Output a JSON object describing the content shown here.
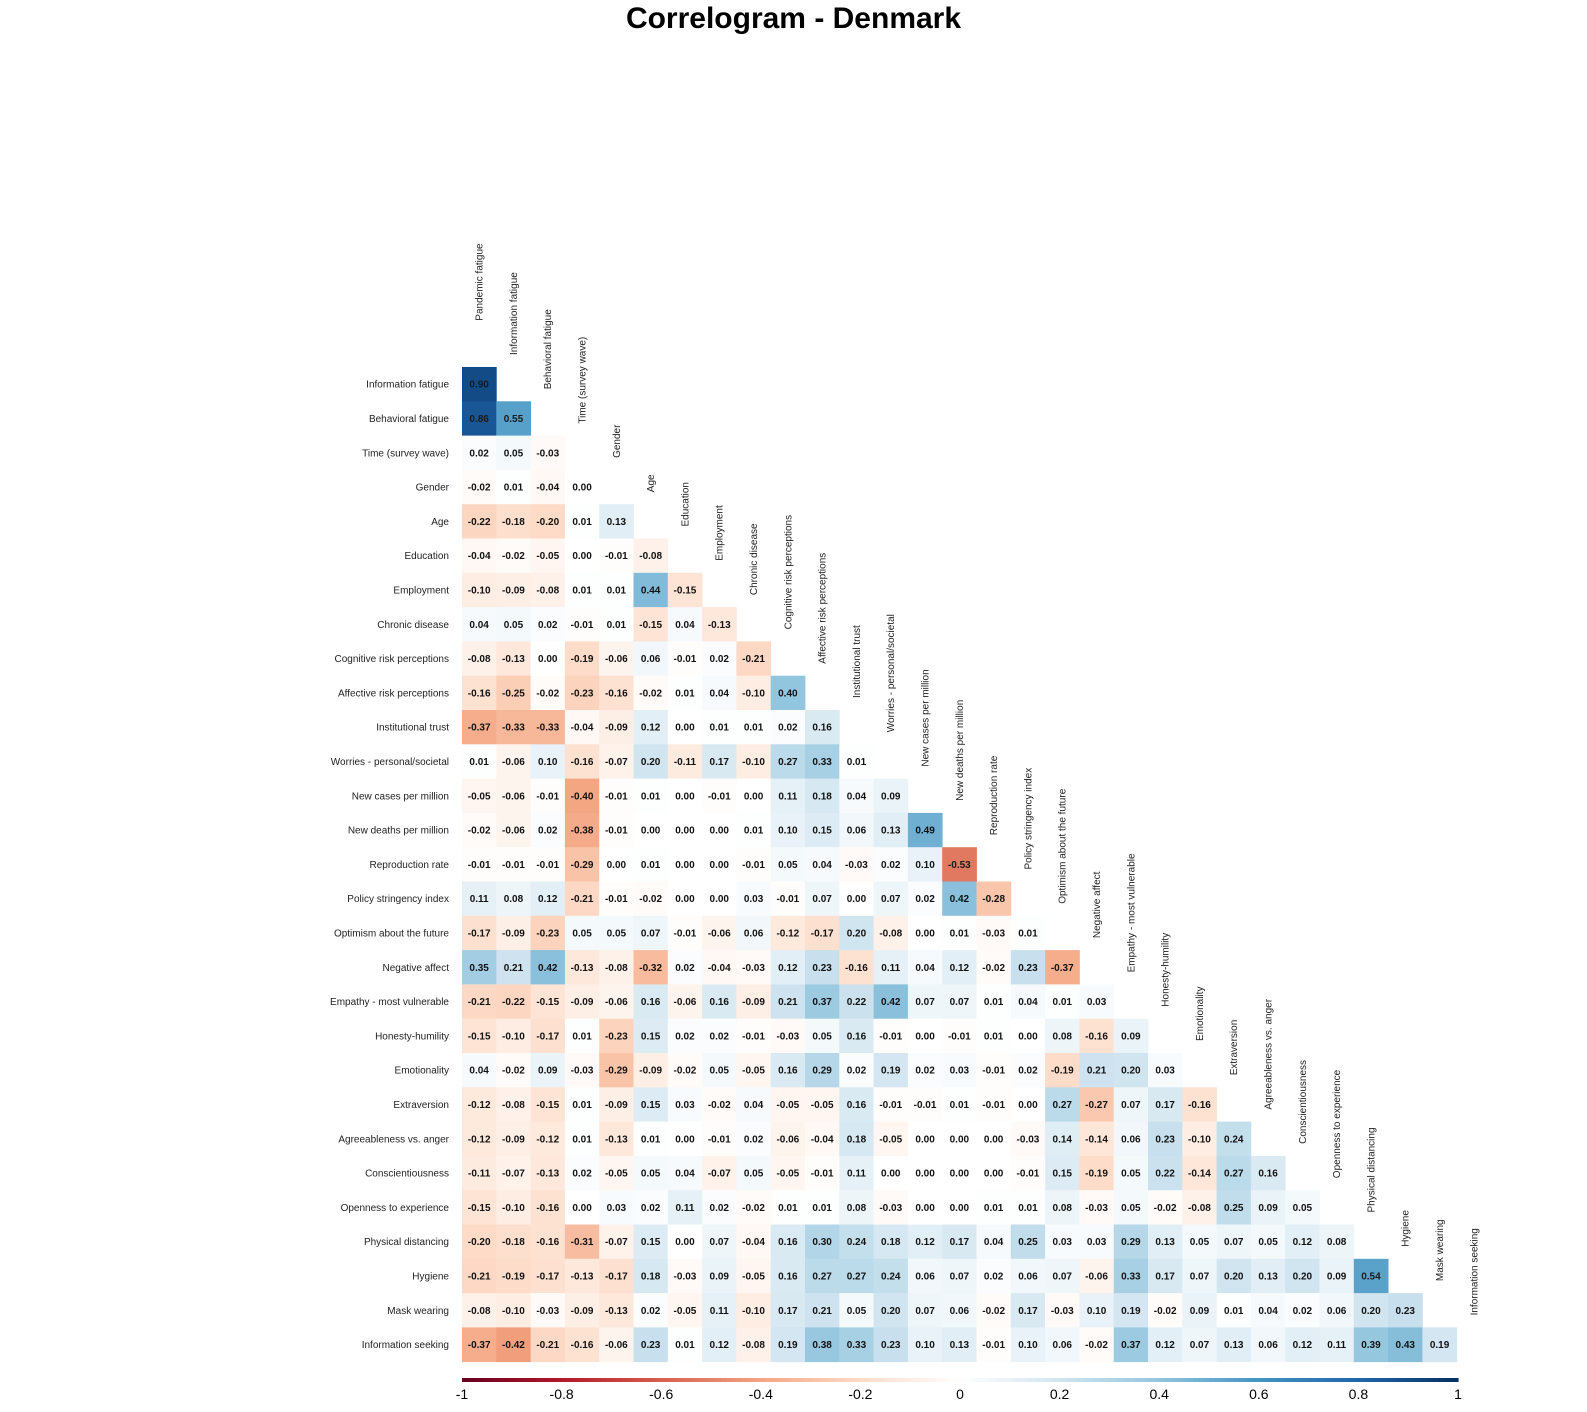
{
  "chart_data": {
    "type": "heatmap",
    "title": "Correlogram - Denmark",
    "variables": [
      "Pandemic fatigue",
      "Information fatigue",
      "Behavioral fatigue",
      "Time (survey wave)",
      "Gender",
      "Age",
      "Education",
      "Employment",
      "Chronic disease",
      "Cognitive risk perceptions",
      "Affective risk perceptions",
      "Institutional trust",
      "Worries - personal/societal",
      "New cases per million",
      "New deaths per million",
      "Reproduction rate",
      "Policy stringency index",
      "Optimism about the future",
      "Negative affect",
      "Empathy - most vulnerable",
      "Honesty-humility",
      "Emotionality",
      "Extraversion",
      "Agreeableness vs. anger",
      "Conscientiousness",
      "Openness to experience",
      "Physical distancing",
      "Hygiene",
      "Mask wearing",
      "Information seeking"
    ],
    "lower_triangle": [
      [
        0.9
      ],
      [
        0.86,
        0.55
      ],
      [
        0.02,
        0.05,
        -0.03
      ],
      [
        -0.02,
        0.01,
        -0.04,
        0.0
      ],
      [
        -0.22,
        -0.18,
        -0.2,
        0.01,
        0.13
      ],
      [
        -0.04,
        -0.02,
        -0.05,
        0.0,
        -0.01,
        -0.08
      ],
      [
        -0.1,
        -0.09,
        -0.08,
        0.01,
        0.01,
        0.44,
        -0.15
      ],
      [
        0.04,
        0.05,
        0.02,
        -0.01,
        0.01,
        -0.15,
        0.04,
        -0.13
      ],
      [
        -0.08,
        -0.13,
        0.0,
        -0.19,
        -0.06,
        0.06,
        -0.01,
        0.02,
        -0.21
      ],
      [
        -0.16,
        -0.25,
        -0.02,
        -0.23,
        -0.16,
        -0.02,
        0.01,
        0.04,
        -0.1,
        0.4
      ],
      [
        -0.37,
        -0.33,
        -0.33,
        -0.04,
        -0.09,
        0.12,
        0.0,
        0.01,
        0.01,
        0.02,
        0.16
      ],
      [
        0.01,
        -0.06,
        0.1,
        -0.16,
        -0.07,
        0.2,
        -0.11,
        0.17,
        -0.1,
        0.27,
        0.33,
        0.01
      ],
      [
        -0.05,
        -0.06,
        -0.01,
        -0.4,
        -0.01,
        0.01,
        0.0,
        -0.01,
        0.0,
        0.11,
        0.18,
        0.04,
        0.09
      ],
      [
        -0.02,
        -0.06,
        0.02,
        -0.38,
        -0.01,
        0.0,
        0.0,
        0.0,
        0.01,
        0.1,
        0.15,
        0.06,
        0.13,
        0.49
      ],
      [
        -0.01,
        -0.01,
        -0.01,
        -0.29,
        0.0,
        0.01,
        0.0,
        0.0,
        -0.01,
        0.05,
        0.04,
        -0.03,
        0.02,
        0.1,
        -0.53
      ],
      [
        0.11,
        0.08,
        0.12,
        -0.21,
        -0.01,
        -0.02,
        0.0,
        0.0,
        0.03,
        -0.01,
        0.07,
        0.0,
        0.07,
        0.02,
        0.42,
        -0.28
      ],
      [
        -0.17,
        -0.09,
        -0.23,
        0.05,
        0.05,
        0.07,
        -0.01,
        -0.06,
        0.06,
        -0.12,
        -0.17,
        0.2,
        -0.08,
        0.0,
        0.01,
        -0.03,
        0.01
      ],
      [
        0.35,
        0.21,
        0.42,
        -0.13,
        -0.08,
        -0.32,
        0.02,
        -0.04,
        -0.03,
        0.12,
        0.23,
        -0.16,
        0.11,
        0.04,
        0.12,
        -0.02,
        0.23,
        -0.37
      ],
      [
        -0.21,
        -0.22,
        -0.15,
        -0.09,
        -0.06,
        0.16,
        -0.06,
        0.16,
        -0.09,
        0.21,
        0.37,
        0.22,
        0.42,
        0.07,
        0.07,
        0.01,
        0.04,
        0.01,
        0.03
      ],
      [
        -0.15,
        -0.1,
        -0.17,
        0.01,
        -0.23,
        0.15,
        0.02,
        0.02,
        -0.01,
        -0.03,
        0.05,
        0.16,
        -0.01,
        0.0,
        -0.01,
        0.01,
        0.0,
        0.08,
        -0.16,
        0.09
      ],
      [
        0.04,
        -0.02,
        0.09,
        -0.03,
        -0.29,
        -0.09,
        -0.02,
        0.05,
        -0.05,
        0.16,
        0.29,
        0.02,
        0.19,
        0.02,
        0.03,
        -0.01,
        0.02,
        -0.19,
        0.21,
        0.2,
        0.03
      ],
      [
        -0.12,
        -0.08,
        -0.15,
        0.01,
        -0.09,
        0.15,
        0.03,
        -0.02,
        0.04,
        -0.05,
        -0.05,
        0.16,
        -0.01,
        -0.01,
        0.01,
        -0.01,
        0.0,
        0.27,
        -0.27,
        0.07,
        0.17,
        -0.16
      ],
      [
        -0.12,
        -0.09,
        -0.12,
        0.01,
        -0.13,
        0.01,
        0.0,
        -0.01,
        0.02,
        -0.06,
        -0.04,
        0.18,
        -0.05,
        0.0,
        0.0,
        0.0,
        -0.03,
        0.14,
        -0.14,
        0.06,
        0.23,
        -0.1,
        0.24
      ],
      [
        -0.11,
        -0.07,
        -0.13,
        0.02,
        -0.05,
        0.05,
        0.04,
        -0.07,
        0.05,
        -0.05,
        -0.01,
        0.11,
        0.0,
        0.0,
        0.0,
        0.0,
        -0.01,
        0.15,
        -0.19,
        0.05,
        0.22,
        -0.14,
        0.27,
        0.16
      ],
      [
        -0.15,
        -0.1,
        -0.16,
        0.0,
        0.03,
        0.02,
        0.11,
        0.02,
        -0.02,
        0.01,
        0.01,
        0.08,
        -0.03,
        0.0,
        0.0,
        0.01,
        0.01,
        0.08,
        -0.03,
        0.05,
        -0.02,
        -0.08,
        0.25,
        0.09,
        0.05
      ],
      [
        -0.2,
        -0.18,
        -0.16,
        -0.31,
        -0.07,
        0.15,
        0.0,
        0.07,
        -0.04,
        0.16,
        0.3,
        0.24,
        0.18,
        0.12,
        0.17,
        0.04,
        0.25,
        0.03,
        0.03,
        0.29,
        0.13,
        0.05,
        0.07,
        0.05,
        0.12,
        0.08
      ],
      [
        -0.21,
        -0.19,
        -0.17,
        -0.13,
        -0.17,
        0.18,
        -0.03,
        0.09,
        -0.05,
        0.16,
        0.27,
        0.27,
        0.24,
        0.06,
        0.07,
        0.02,
        0.06,
        0.07,
        -0.06,
        0.33,
        0.17,
        0.07,
        0.2,
        0.13,
        0.2,
        0.09,
        0.54
      ],
      [
        -0.08,
        -0.1,
        -0.03,
        -0.09,
        -0.13,
        0.02,
        -0.05,
        0.11,
        -0.1,
        0.17,
        0.21,
        0.05,
        0.2,
        0.07,
        0.06,
        -0.02,
        0.17,
        -0.03,
        0.1,
        0.19,
        -0.02,
        0.09,
        0.01,
        0.04,
        0.02,
        0.06,
        0.2,
        0.23
      ],
      [
        -0.37,
        -0.42,
        -0.21,
        -0.16,
        -0.06,
        0.23,
        0.01,
        0.12,
        -0.08,
        0.19,
        0.38,
        0.33,
        0.23,
        0.1,
        0.13,
        -0.01,
        0.1,
        0.06,
        -0.02,
        0.37,
        0.12,
        0.07,
        0.13,
        0.06,
        0.12,
        0.11,
        0.39,
        0.43,
        0.19
      ]
    ],
    "color_scale": {
      "min": -1,
      "max": 1,
      "negative_color": "#b2182b",
      "mid_color": "#ffffff",
      "positive_color": "#053061"
    },
    "colorbar_ticks": [
      "-1",
      "-0.8",
      "-0.6",
      "-0.4",
      "-0.2",
      "0",
      "0.2",
      "0.4",
      "0.6",
      "0.8",
      "1"
    ]
  }
}
